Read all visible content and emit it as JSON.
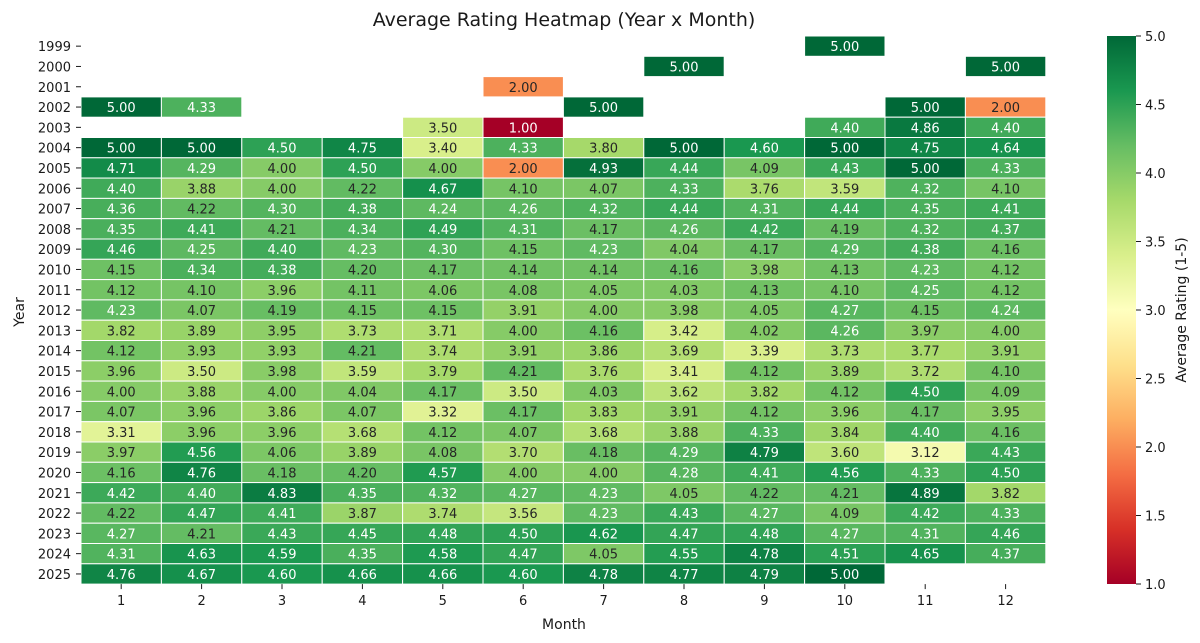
{
  "chart_data": {
    "type": "heatmap",
    "title": "Average Rating Heatmap (Year x Month)",
    "xlabel": "Month",
    "ylabel": "Year",
    "x_categories": [
      "1",
      "2",
      "3",
      "4",
      "5",
      "6",
      "7",
      "8",
      "9",
      "10",
      "11",
      "12"
    ],
    "y_categories": [
      "1999",
      "2000",
      "2001",
      "2002",
      "2003",
      "2004",
      "2005",
      "2006",
      "2007",
      "2008",
      "2009",
      "2010",
      "2011",
      "2012",
      "2013",
      "2014",
      "2015",
      "2016",
      "2017",
      "2018",
      "2019",
      "2020",
      "2021",
      "2022",
      "2023",
      "2024",
      "2025"
    ],
    "values": [
      [
        null,
        null,
        null,
        null,
        null,
        null,
        null,
        null,
        null,
        5.0,
        null,
        null
      ],
      [
        null,
        null,
        null,
        null,
        null,
        null,
        null,
        5.0,
        null,
        null,
        null,
        5.0
      ],
      [
        null,
        null,
        null,
        null,
        null,
        2.0,
        null,
        null,
        null,
        null,
        null,
        null
      ],
      [
        5.0,
        4.33,
        null,
        null,
        null,
        null,
        5.0,
        null,
        null,
        null,
        5.0,
        2.0
      ],
      [
        null,
        null,
        null,
        null,
        3.5,
        1.0,
        null,
        null,
        null,
        4.4,
        4.86,
        4.4
      ],
      [
        5.0,
        5.0,
        4.5,
        4.75,
        3.4,
        4.33,
        3.8,
        5.0,
        4.6,
        5.0,
        4.75,
        4.64
      ],
      [
        4.71,
        4.29,
        4.0,
        4.5,
        4.0,
        2.0,
        4.93,
        4.44,
        4.09,
        4.43,
        5.0,
        4.33
      ],
      [
        4.4,
        3.88,
        4.0,
        4.22,
        4.67,
        4.1,
        4.07,
        4.33,
        3.76,
        3.59,
        4.32,
        4.1
      ],
      [
        4.36,
        4.22,
        4.3,
        4.38,
        4.24,
        4.26,
        4.32,
        4.44,
        4.31,
        4.44,
        4.35,
        4.41
      ],
      [
        4.35,
        4.41,
        4.21,
        4.34,
        4.49,
        4.31,
        4.17,
        4.26,
        4.42,
        4.19,
        4.32,
        4.37
      ],
      [
        4.46,
        4.25,
        4.4,
        4.23,
        4.3,
        4.15,
        4.23,
        4.04,
        4.17,
        4.29,
        4.38,
        4.16
      ],
      [
        4.15,
        4.34,
        4.38,
        4.2,
        4.17,
        4.14,
        4.14,
        4.16,
        3.98,
        4.13,
        4.23,
        4.12
      ],
      [
        4.12,
        4.1,
        3.96,
        4.11,
        4.06,
        4.08,
        4.05,
        4.03,
        4.13,
        4.1,
        4.25,
        4.12
      ],
      [
        4.23,
        4.07,
        4.19,
        4.15,
        4.15,
        3.91,
        4.0,
        3.98,
        4.05,
        4.27,
        4.15,
        4.24
      ],
      [
        3.82,
        3.89,
        3.95,
        3.73,
        3.71,
        4.0,
        4.16,
        3.42,
        4.02,
        4.26,
        3.97,
        4.0
      ],
      [
        4.12,
        3.93,
        3.93,
        4.21,
        3.74,
        3.91,
        3.86,
        3.69,
        3.39,
        3.73,
        3.77,
        3.91
      ],
      [
        3.96,
        3.5,
        3.98,
        3.59,
        3.79,
        4.21,
        3.76,
        3.41,
        4.12,
        3.89,
        3.72,
        4.1
      ],
      [
        4.0,
        3.88,
        4.0,
        4.04,
        4.17,
        3.5,
        4.03,
        3.62,
        3.82,
        4.12,
        4.5,
        4.09
      ],
      [
        4.07,
        3.96,
        3.86,
        4.07,
        3.32,
        4.17,
        3.83,
        3.91,
        4.12,
        3.96,
        4.17,
        3.95
      ],
      [
        3.31,
        3.96,
        3.96,
        3.68,
        4.12,
        4.07,
        3.68,
        3.88,
        4.33,
        3.84,
        4.4,
        4.16
      ],
      [
        3.97,
        4.56,
        4.06,
        3.89,
        4.08,
        3.7,
        4.18,
        4.29,
        4.79,
        3.6,
        3.12,
        4.43
      ],
      [
        4.16,
        4.76,
        4.18,
        4.2,
        4.57,
        4.0,
        4.0,
        4.28,
        4.41,
        4.56,
        4.33,
        4.5
      ],
      [
        4.42,
        4.4,
        4.83,
        4.35,
        4.32,
        4.27,
        4.23,
        4.05,
        4.22,
        4.21,
        4.89,
        3.82
      ],
      [
        4.22,
        4.47,
        4.41,
        3.87,
        3.74,
        3.56,
        4.23,
        4.43,
        4.27,
        4.09,
        4.42,
        4.33
      ],
      [
        4.27,
        4.21,
        4.43,
        4.45,
        4.48,
        4.5,
        4.62,
        4.47,
        4.48,
        4.27,
        4.31,
        4.46
      ],
      [
        4.31,
        4.63,
        4.59,
        4.35,
        4.58,
        4.47,
        4.05,
        4.55,
        4.78,
        4.51,
        4.65,
        4.37
      ],
      [
        4.76,
        4.67,
        4.6,
        4.66,
        4.66,
        4.6,
        4.78,
        4.77,
        4.79,
        5.0,
        null,
        null
      ]
    ],
    "color_scale": {
      "name": "RdYlGn",
      "vmin": 1.0,
      "vmax": 5.0,
      "label": "Average Rating (1-5)",
      "ticks": [
        "1.0",
        "1.5",
        "2.0",
        "2.5",
        "3.0",
        "3.5",
        "4.0",
        "4.5",
        "5.0"
      ]
    },
    "annotations": "values shown in cells with 2 decimals",
    "legend": "colorbar right",
    "grid": false
  }
}
